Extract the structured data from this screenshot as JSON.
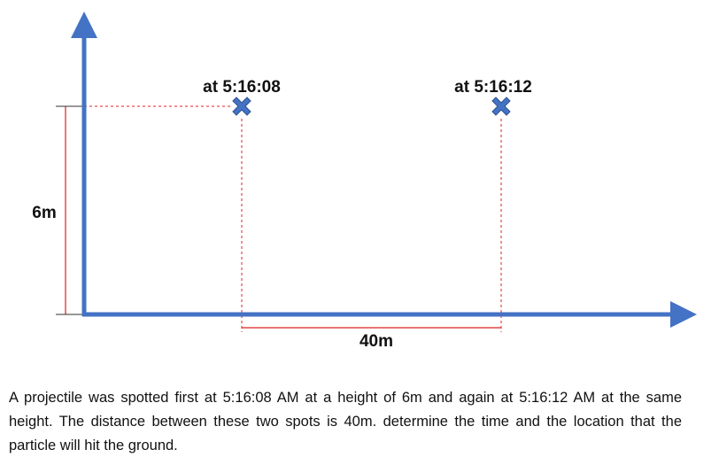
{
  "diagram": {
    "points": [
      {
        "label": "at 5:16:08"
      },
      {
        "label": "at 5:16:12"
      }
    ],
    "height_label": "6m",
    "distance_label": "40m"
  },
  "problem": {
    "text": "A projectile was spotted first at 5:16:08 AM at a height of 6m and again at 5:16:12 AM at the same height. The distance between these two spots is 40m. determine the time and the location that the particle will hit the ground."
  }
}
